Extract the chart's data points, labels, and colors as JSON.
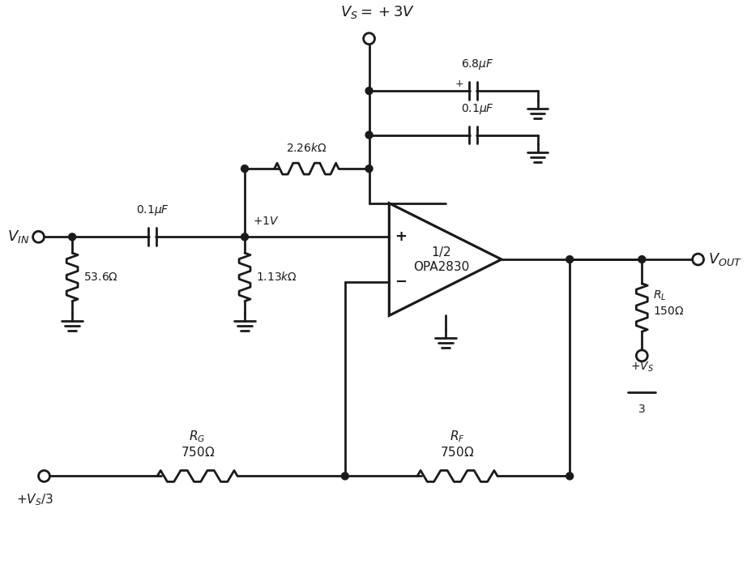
{
  "bg_color": "#ffffff",
  "line_color": "#1a1a1a",
  "line_width": 2.0,
  "fig_width": 9.22,
  "fig_height": 7.07,
  "vs_label": "$V_S = +3V$",
  "cap68_label": "$6.8\\mu F$",
  "cap01_top_label": "$0.1\\mu F$",
  "cap01_sig_label": "$0.1\\mu F$",
  "r226_label": "$2.26k\\Omega$",
  "r1v_label": "$+1V$",
  "r113_label": "$1.13k\\Omega$",
  "r536_label": "$53.6\\Omega$",
  "vin_label": "$V_{IN}$",
  "vout_label": "$V_{OUT}$",
  "opamp_line1": "$1/2$",
  "opamp_line2": "OPA2830",
  "rg_label1": "$R_G$",
  "rg_label2": "$750\\Omega$",
  "rf_label1": "$R_F$",
  "rf_label2": "$750\\Omega$",
  "rl_label1": "$R_L$",
  "rl_label2": "$150\\Omega$",
  "vsp3_label": "$+V_S/3$",
  "vsp3_frac_label1": "$+V_S$",
  "vsp3_frac_label2": "$3$"
}
